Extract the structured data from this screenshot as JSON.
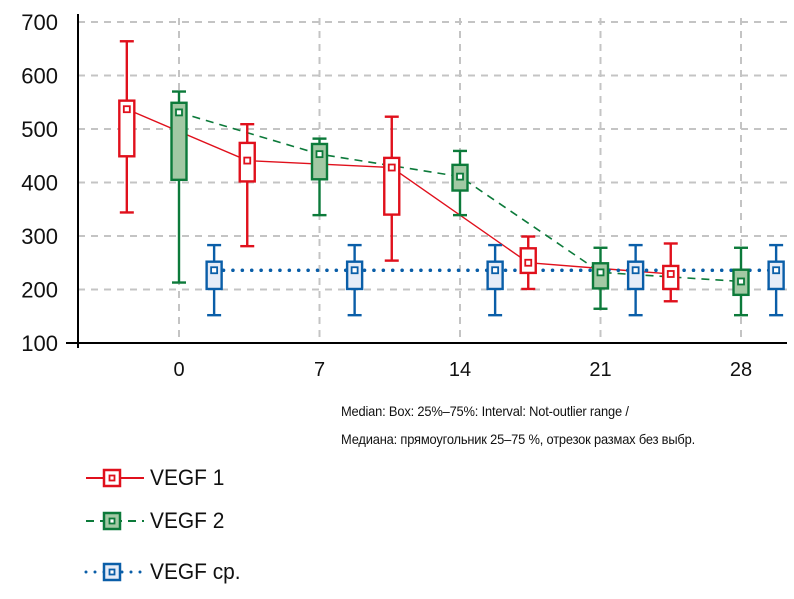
{
  "chart_data": {
    "type": "boxplot",
    "title": "",
    "xlabel": "",
    "ylabel": "",
    "ylim": [
      100,
      700
    ],
    "xlim": [
      -5,
      30.5
    ],
    "yticks": [
      "100",
      "200",
      "300",
      "400",
      "500",
      "600",
      "700"
    ],
    "yticks_values": [
      100,
      200,
      300,
      400,
      500,
      600,
      700
    ],
    "xticks": [
      "0",
      "7",
      "14",
      "21",
      "28"
    ],
    "xticks_values": [
      0,
      7,
      14,
      21,
      28
    ],
    "grid": true,
    "legend_position": "bottom-left",
    "series": [
      {
        "name": "VEGF 1",
        "color": "#e0101c",
        "fill": "#ffffff",
        "line_style": "solid",
        "points": [
          {
            "x": -2.6,
            "whisker_high": 664,
            "q3": 553,
            "median": 537,
            "q1": 449,
            "whisker_low": 344
          },
          {
            "x": 3.4,
            "whisker_high": 509,
            "q3": 474,
            "median": 441,
            "q1": 402,
            "whisker_low": 281
          },
          {
            "x": 10.6,
            "whisker_high": 523,
            "q3": 446,
            "median": 428,
            "q1": 340,
            "whisker_low": 254
          },
          {
            "x": 17.4,
            "whisker_high": 299,
            "q3": 277,
            "median": 250,
            "q1": 231,
            "whisker_low": 201
          },
          {
            "x": 24.5,
            "whisker_high": 286,
            "q3": 244,
            "median": 229,
            "q1": 201,
            "whisker_low": 178
          }
        ]
      },
      {
        "name": "VEGF 2",
        "color": "#0c7a3a",
        "fill": "#a2c9a4",
        "line_style": "dashed",
        "points": [
          {
            "x": 0,
            "whisker_high": 570,
            "q3": 549,
            "median": 531,
            "q1": 405,
            "whisker_low": 213
          },
          {
            "x": 7,
            "whisker_high": 482,
            "q3": 472,
            "median": 453,
            "q1": 406,
            "whisker_low": 339
          },
          {
            "x": 14,
            "whisker_high": 459,
            "q3": 433,
            "median": 411,
            "q1": 385,
            "whisker_low": 339
          },
          {
            "x": 21,
            "whisker_high": 278,
            "q3": 249,
            "median": 232,
            "q1": 202,
            "whisker_low": 164
          },
          {
            "x": 28,
            "whisker_high": 278,
            "q3": 237,
            "median": 215,
            "q1": 190,
            "whisker_low": 152
          }
        ]
      },
      {
        "name": "VEGF ср.",
        "color": "#0a5ea8",
        "fill": "#e6ecf7",
        "line_style": "dotted",
        "points": [
          {
            "x": 1.75,
            "whisker_high": 283,
            "q3": 252,
            "median": 236,
            "q1": 201,
            "whisker_low": 152
          },
          {
            "x": 8.75,
            "whisker_high": 283,
            "q3": 252,
            "median": 236,
            "q1": 201,
            "whisker_low": 152
          },
          {
            "x": 15.75,
            "whisker_high": 283,
            "q3": 252,
            "median": 236,
            "q1": 201,
            "whisker_low": 152
          },
          {
            "x": 22.75,
            "whisker_high": 283,
            "q3": 252,
            "median": 236,
            "q1": 201,
            "whisker_low": 152
          },
          {
            "x": 29.75,
            "whisker_high": 283,
            "q3": 252,
            "median": 236,
            "q1": 201,
            "whisker_low": 152
          }
        ]
      }
    ],
    "annotation": [
      "Median: Box: 25%–75%: Interval: Not-outlier range /",
      "Медиана: прямоугольник 25–75 %, отрезок размах без выбр."
    ]
  },
  "legend": [
    {
      "label": "VEGF 1"
    },
    {
      "label": "VEGF 2"
    },
    {
      "label": "VEGF ср."
    }
  ]
}
